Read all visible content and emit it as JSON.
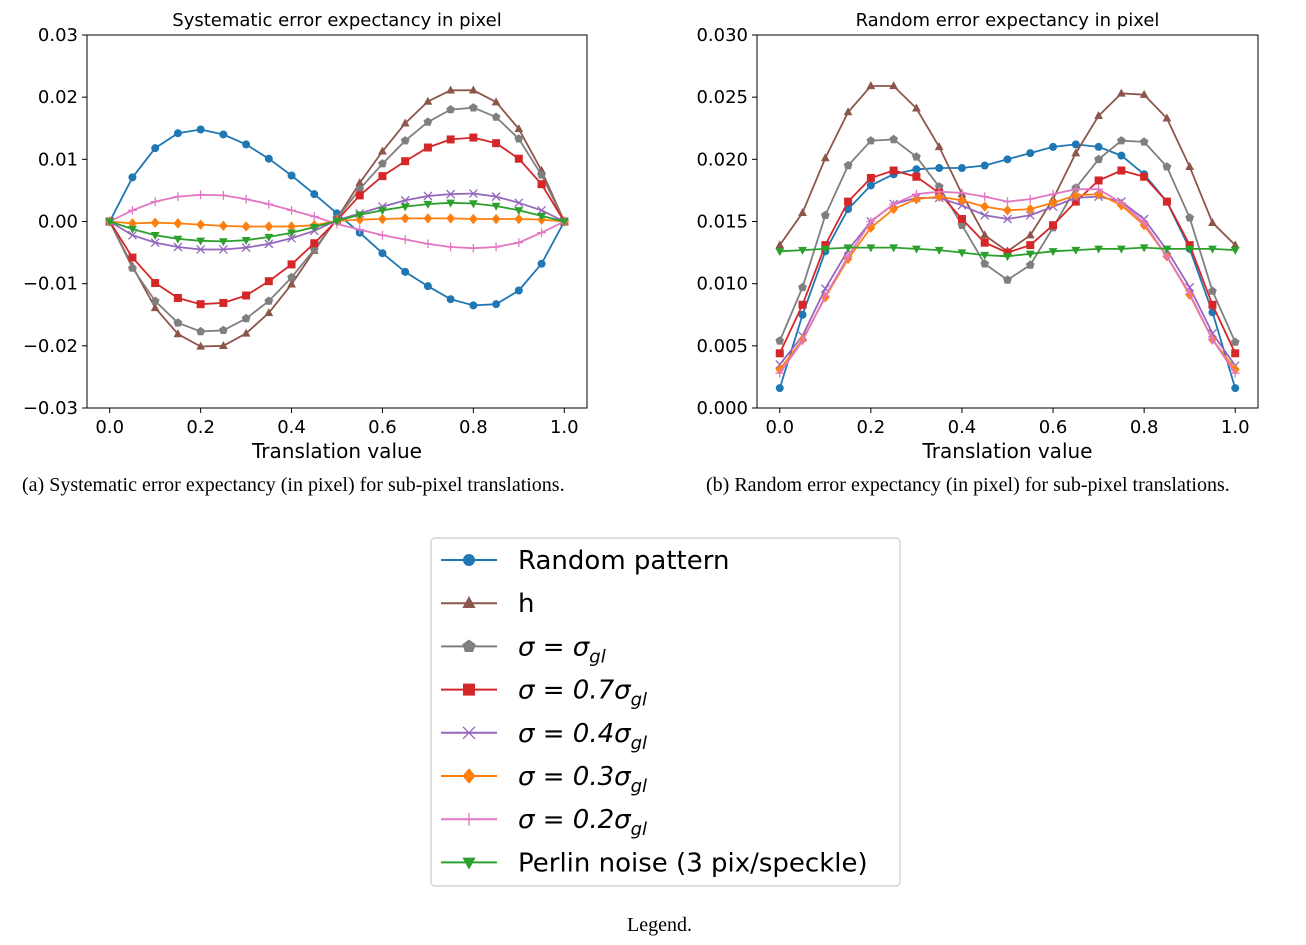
{
  "chart_data": [
    {
      "type": "line",
      "title": "Systematic error expectancy in pixel",
      "xlabel": "Translation value",
      "ylabel": "",
      "xlim": [
        -0.05,
        1.05
      ],
      "ylim": [
        -0.03,
        0.03
      ],
      "xticks": [
        "0.0",
        "0.2",
        "0.4",
        "0.6",
        "0.8",
        "1.0"
      ],
      "yticks": [
        "−0.03",
        "−0.02",
        "−0.01",
        "0.00",
        "0.01",
        "0.02",
        "0.03"
      ],
      "ytick_values": [
        -0.03,
        -0.02,
        -0.01,
        0.0,
        0.01,
        0.02,
        0.03
      ],
      "caption": "(a) Systematic error expectancy (in pixel) for sub-pixel translations.",
      "x": [
        0,
        0.05,
        0.1,
        0.15,
        0.2,
        0.25,
        0.3,
        0.35,
        0.4,
        0.45,
        0.5,
        0.55,
        0.6,
        0.65,
        0.7,
        0.75,
        0.8,
        0.85,
        0.9,
        0.95,
        1.0
      ],
      "series": [
        {
          "key": "random",
          "values": [
            0,
            0.0071,
            0.0118,
            0.0142,
            0.0148,
            0.014,
            0.0124,
            0.0101,
            0.0074,
            0.0044,
            0.0013,
            -0.0018,
            -0.0051,
            -0.0081,
            -0.0104,
            -0.0125,
            -0.0135,
            -0.0133,
            -0.0111,
            -0.0068,
            0
          ]
        },
        {
          "key": "h",
          "values": [
            0,
            -0.0072,
            -0.0139,
            -0.0181,
            -0.0201,
            -0.02,
            -0.018,
            -0.0147,
            -0.0101,
            -0.0047,
            0.0005,
            0.0062,
            0.0113,
            0.0158,
            0.0193,
            0.0211,
            0.0211,
            0.0192,
            0.0149,
            0.0082,
            0
          ]
        },
        {
          "key": "gl",
          "values": [
            0,
            -0.0075,
            -0.0128,
            -0.0163,
            -0.0177,
            -0.0175,
            -0.0156,
            -0.0128,
            -0.009,
            -0.0045,
            0.0005,
            0.0052,
            0.0093,
            0.013,
            0.016,
            0.018,
            0.0183,
            0.0168,
            0.0133,
            0.0075,
            0
          ]
        },
        {
          "key": "gl07",
          "values": [
            0,
            -0.0058,
            -0.0099,
            -0.0123,
            -0.0133,
            -0.0131,
            -0.0119,
            -0.0096,
            -0.0069,
            -0.0035,
            0.0002,
            0.0042,
            0.0073,
            0.0097,
            0.0119,
            0.0132,
            0.0135,
            0.0126,
            0.0101,
            0.006,
            0
          ]
        },
        {
          "key": "gl04",
          "values": [
            0,
            -0.0022,
            -0.0034,
            -0.0041,
            -0.0045,
            -0.0045,
            -0.0042,
            -0.0036,
            -0.0027,
            -0.0015,
            0.0002,
            0.0013,
            0.0024,
            0.0034,
            0.0041,
            0.0044,
            0.0045,
            0.004,
            0.003,
            0.0018,
            0
          ]
        },
        {
          "key": "gl03",
          "values": [
            0,
            -0.0003,
            -0.0002,
            -0.0003,
            -0.0005,
            -0.0007,
            -0.0008,
            -0.0008,
            -0.0008,
            -0.0006,
            0.0001,
            0.0003,
            0.0004,
            0.0005,
            0.0005,
            0.0005,
            0.0004,
            0.0004,
            0.0004,
            0.0003,
            0
          ]
        },
        {
          "key": "gl02",
          "values": [
            0,
            0.0018,
            0.0032,
            0.004,
            0.0043,
            0.0042,
            0.0036,
            0.0028,
            0.0018,
            0.0008,
            -0.0004,
            -0.0013,
            -0.0022,
            -0.0029,
            -0.0036,
            -0.0041,
            -0.0043,
            -0.0041,
            -0.0034,
            -0.0018,
            0
          ]
        },
        {
          "key": "perlin",
          "values": [
            0,
            -0.0012,
            -0.0022,
            -0.0028,
            -0.0031,
            -0.0032,
            -0.003,
            -0.0025,
            -0.0018,
            -0.0009,
            0.0001,
            0.0011,
            0.0018,
            0.0024,
            0.0028,
            0.003,
            0.0029,
            0.0025,
            0.0018,
            0.0009,
            0
          ]
        }
      ]
    },
    {
      "type": "line",
      "title": "Random error expectancy in pixel",
      "xlabel": "Translation value",
      "ylabel": "",
      "xlim": [
        -0.05,
        1.05
      ],
      "ylim": [
        0,
        0.03
      ],
      "xticks": [
        "0.0",
        "0.2",
        "0.4",
        "0.6",
        "0.8",
        "1.0"
      ],
      "yticks": [
        "0.000",
        "0.005",
        "0.010",
        "0.015",
        "0.020",
        "0.025",
        "0.030"
      ],
      "ytick_values": [
        0,
        0.005,
        0.01,
        0.015,
        0.02,
        0.025,
        0.03
      ],
      "caption": "(b) Random error expectancy (in pixel) for sub-pixel translations.",
      "x": [
        0,
        0.05,
        0.1,
        0.15,
        0.2,
        0.25,
        0.3,
        0.35,
        0.4,
        0.45,
        0.5,
        0.55,
        0.6,
        0.65,
        0.7,
        0.75,
        0.8,
        0.85,
        0.9,
        0.95,
        1.0
      ],
      "series": [
        {
          "key": "random",
          "values": [
            0.0016,
            0.0075,
            0.0126,
            0.016,
            0.0179,
            0.0188,
            0.0192,
            0.0193,
            0.0193,
            0.0195,
            0.02,
            0.0205,
            0.021,
            0.0212,
            0.021,
            0.0203,
            0.0188,
            0.0166,
            0.0128,
            0.0077,
            0.0016
          ]
        },
        {
          "key": "h",
          "values": [
            0.0131,
            0.0157,
            0.0201,
            0.0238,
            0.0259,
            0.0259,
            0.0241,
            0.021,
            0.0172,
            0.0139,
            0.0126,
            0.0139,
            0.0168,
            0.0205,
            0.0235,
            0.0253,
            0.0252,
            0.0233,
            0.0194,
            0.0149,
            0.0131
          ]
        },
        {
          "key": "gl",
          "values": [
            0.0054,
            0.0097,
            0.0155,
            0.0195,
            0.0215,
            0.0216,
            0.0202,
            0.0178,
            0.0147,
            0.0116,
            0.0103,
            0.0115,
            0.0145,
            0.0177,
            0.02,
            0.0215,
            0.0214,
            0.0194,
            0.0153,
            0.0094,
            0.0053
          ]
        },
        {
          "key": "gl07",
          "values": [
            0.0044,
            0.0083,
            0.0131,
            0.0166,
            0.0185,
            0.0191,
            0.0186,
            0.0173,
            0.0152,
            0.0133,
            0.0125,
            0.0131,
            0.0147,
            0.0166,
            0.0183,
            0.0191,
            0.0186,
            0.0166,
            0.0131,
            0.0083,
            0.0044
          ]
        },
        {
          "key": "gl04",
          "values": [
            0.0035,
            0.0058,
            0.0096,
            0.0127,
            0.015,
            0.0164,
            0.0169,
            0.0169,
            0.0163,
            0.0155,
            0.0152,
            0.0155,
            0.0162,
            0.0169,
            0.017,
            0.0166,
            0.0152,
            0.0127,
            0.0097,
            0.006,
            0.0034
          ]
        },
        {
          "key": "gl03",
          "values": [
            0.0031,
            0.0055,
            0.0089,
            0.012,
            0.0145,
            0.016,
            0.0168,
            0.017,
            0.0167,
            0.0162,
            0.0159,
            0.016,
            0.0165,
            0.0171,
            0.0172,
            0.0163,
            0.0147,
            0.0122,
            0.0091,
            0.0055,
            0.0031
          ]
        },
        {
          "key": "gl02",
          "values": [
            0.0028,
            0.0054,
            0.009,
            0.0122,
            0.015,
            0.0164,
            0.0172,
            0.0174,
            0.0173,
            0.017,
            0.0166,
            0.0168,
            0.0172,
            0.0176,
            0.0176,
            0.0165,
            0.0149,
            0.0122,
            0.0092,
            0.0055,
            0.0028
          ]
        },
        {
          "key": "perlin",
          "values": [
            0.0126,
            0.0127,
            0.0128,
            0.0129,
            0.0129,
            0.0129,
            0.0128,
            0.0127,
            0.0125,
            0.0123,
            0.0122,
            0.0124,
            0.0126,
            0.0127,
            0.0128,
            0.0128,
            0.0129,
            0.0128,
            0.0128,
            0.0128,
            0.0127
          ]
        }
      ]
    }
  ],
  "styles": {
    "random": {
      "color": "#1f77b4",
      "marker": "circle"
    },
    "h": {
      "color": "#8c564b",
      "marker": "triangle-up"
    },
    "gl": {
      "color": "#7f7f7f",
      "marker": "pentagon"
    },
    "gl07": {
      "color": "#d62728",
      "marker": "square"
    },
    "gl04": {
      "color": "#9467bd",
      "marker": "x"
    },
    "gl03": {
      "color": "#ff7f0e",
      "marker": "diamond"
    },
    "gl02": {
      "color": "#e377c2",
      "marker": "plus"
    },
    "perlin": {
      "color": "#2ca02c",
      "marker": "triangle-down"
    }
  },
  "legend": {
    "entries": [
      {
        "key": "random",
        "label": "Random pattern"
      },
      {
        "key": "h",
        "label": "h"
      },
      {
        "key": "gl",
        "label": "σ = σ",
        "sub": "gl"
      },
      {
        "key": "gl07",
        "label": "σ = 0.7σ",
        "sub": "gl"
      },
      {
        "key": "gl04",
        "label": "σ = 0.4σ",
        "sub": "gl"
      },
      {
        "key": "gl03",
        "label": "σ = 0.3σ",
        "sub": "gl"
      },
      {
        "key": "gl02",
        "label": "σ = 0.2σ",
        "sub": "gl"
      },
      {
        "key": "perlin",
        "label": "Perlin noise (3 pix/speckle)"
      }
    ],
    "caption": "Legend."
  }
}
